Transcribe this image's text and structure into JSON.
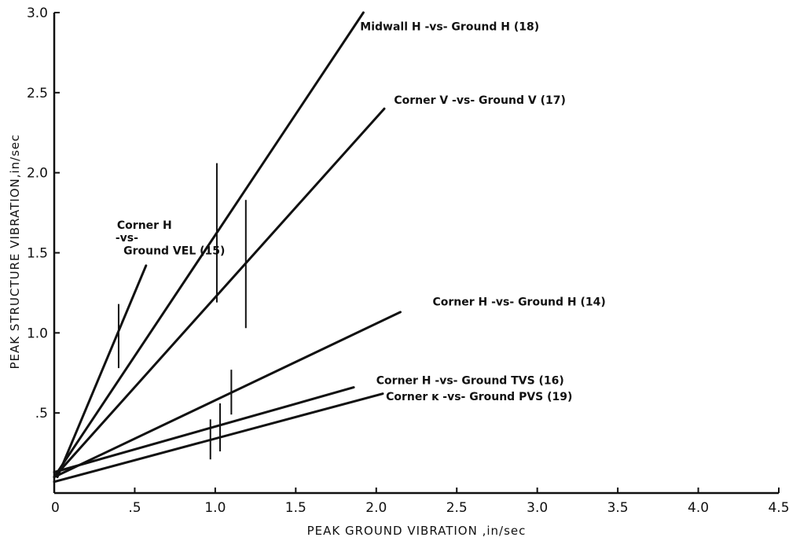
{
  "chart_data": {
    "type": "line",
    "title": "",
    "xlabel": "PEAK GROUND VIBRATION ,in/sec",
    "ylabel": "PEAK STRUCTURE VIBRATION,in/sec",
    "xlim": [
      0,
      4.5
    ],
    "ylim": [
      0,
      3.0
    ],
    "grid": false,
    "x_ticks": [
      {
        "value": 0,
        "label": "0"
      },
      {
        "value": 0.5,
        "label": ".5"
      },
      {
        "value": 1.0,
        "label": "1.0"
      },
      {
        "value": 1.5,
        "label": "1.5"
      },
      {
        "value": 2.0,
        "label": "2.0"
      },
      {
        "value": 2.5,
        "label": "2.5"
      },
      {
        "value": 3.0,
        "label": "3.0"
      },
      {
        "value": 3.5,
        "label": "3.5"
      },
      {
        "value": 4.0,
        "label": "4.0"
      },
      {
        "value": 4.5,
        "label": "4.5"
      }
    ],
    "y_ticks": [
      {
        "value": 0.5,
        "label": ".5"
      },
      {
        "value": 1.0,
        "label": "1.0"
      },
      {
        "value": 1.5,
        "label": "1.5"
      },
      {
        "value": 2.0,
        "label": "2.0"
      },
      {
        "value": 2.5,
        "label": "2.5"
      },
      {
        "value": 3.0,
        "label": "3.0"
      }
    ],
    "series": [
      {
        "x": [
          0.0,
          1.92
        ],
        "y": [
          0.1,
          3.0
        ]
      },
      {
        "x": [
          0.0,
          2.05
        ],
        "y": [
          0.1,
          2.4
        ]
      },
      {
        "x": [
          0.02,
          0.57
        ],
        "y": [
          0.1,
          1.42
        ]
      },
      {
        "x": [
          0.0,
          2.15
        ],
        "y": [
          0.1,
          1.13
        ]
      },
      {
        "x": [
          0.0,
          1.86
        ],
        "y": [
          0.13,
          0.66
        ]
      },
      {
        "x": [
          0.0,
          2.04
        ],
        "y": [
          0.07,
          0.62
        ]
      }
    ],
    "error_bars": [
      {
        "x": 0.4,
        "y_low": 0.78,
        "y_high": 1.18
      },
      {
        "x": 1.01,
        "y_low": 1.19,
        "y_high": 2.06
      },
      {
        "x": 1.19,
        "y_low": 1.03,
        "y_high": 1.83
      },
      {
        "x": 0.97,
        "y_low": 0.21,
        "y_high": 0.46
      },
      {
        "x": 1.03,
        "y_low": 0.26,
        "y_high": 0.56
      },
      {
        "x": 1.1,
        "y_low": 0.49,
        "y_high": 0.77
      }
    ],
    "annotations": [
      {
        "text": "Midwall H -vs- Ground H (18)",
        "x": 1.9,
        "y": 2.89
      },
      {
        "text": "Corner V -vs- Ground V (17)",
        "x": 2.11,
        "y": 2.43
      },
      {
        "text": "Corner H",
        "x": 0.39,
        "y": 1.65
      },
      {
        "text": "-vs-",
        "x": 0.38,
        "y": 1.57
      },
      {
        "text": "Ground VEL (15)",
        "x": 0.43,
        "y": 1.49
      },
      {
        "text": "Corner H -vs- Ground H (14)",
        "x": 2.35,
        "y": 1.17
      },
      {
        "text": "Corner H -vs- Ground TVS (16)",
        "x": 2.0,
        "y": 0.68
      },
      {
        "text": "Corner ĸ -vs- Ground PVS (19)",
        "x": 2.06,
        "y": 0.58
      }
    ],
    "colors": {
      "axis": "#111111",
      "line": "#111111",
      "background": "#ffffff"
    }
  }
}
